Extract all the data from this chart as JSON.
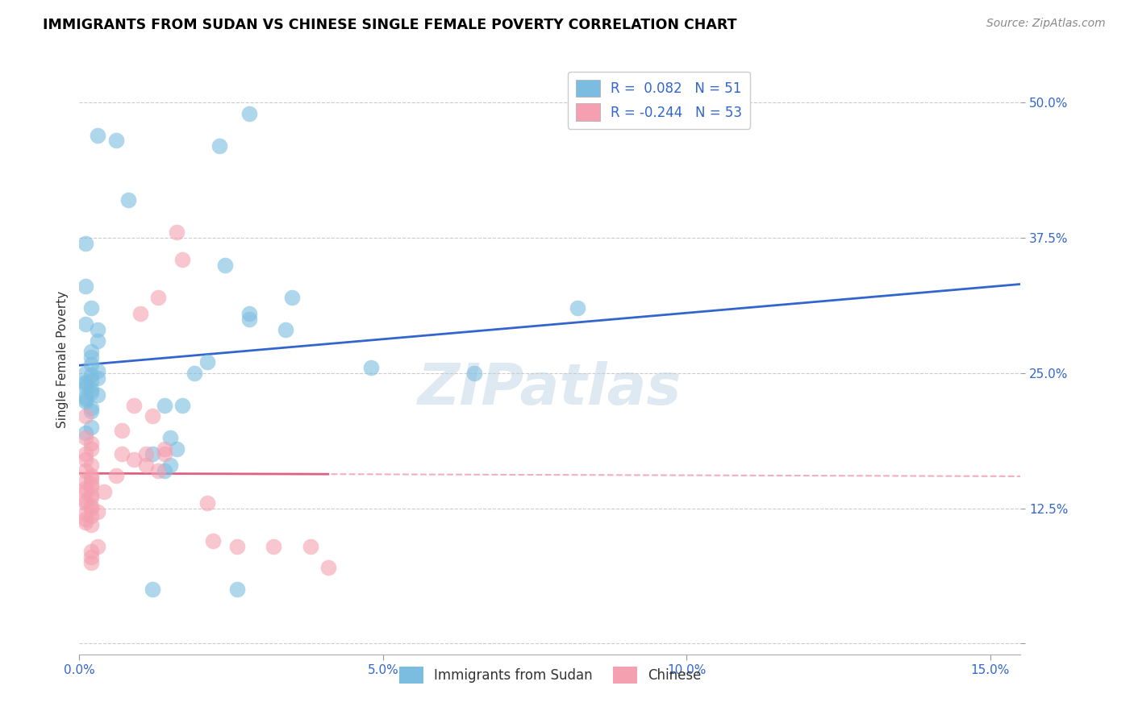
{
  "title": "IMMIGRANTS FROM SUDAN VS CHINESE SINGLE FEMALE POVERTY CORRELATION CHART",
  "source": "Source: ZipAtlas.com",
  "ylabel": "Single Female Poverty",
  "yticks": [
    0.0,
    0.125,
    0.25,
    0.375,
    0.5
  ],
  "ytick_labels": [
    "",
    "12.5%",
    "25.0%",
    "37.5%",
    "50.0%"
  ],
  "xticks": [
    0.0,
    0.05,
    0.1,
    0.15
  ],
  "xtick_labels": [
    "0.0%",
    "5.0%",
    "10.0%",
    "15.0%"
  ],
  "xlim": [
    0.0,
    0.155
  ],
  "ylim": [
    -0.01,
    0.535
  ],
  "legend_label1": "Immigrants from Sudan",
  "legend_label2": "Chinese",
  "color_blue": "#7bbde0",
  "color_pink": "#f4a0b0",
  "line_blue": "#3366cc",
  "line_pink": "#e06080",
  "watermark": "ZIPatlas",
  "sudan_x": [
    0.001,
    0.008,
    0.003,
    0.006,
    0.001,
    0.001,
    0.002,
    0.001,
    0.003,
    0.003,
    0.002,
    0.002,
    0.002,
    0.003,
    0.002,
    0.003,
    0.002,
    0.001,
    0.001,
    0.001,
    0.002,
    0.002,
    0.003,
    0.001,
    0.001,
    0.001,
    0.002,
    0.002,
    0.002,
    0.001,
    0.014,
    0.015,
    0.012,
    0.028,
    0.023,
    0.024,
    0.035,
    0.028,
    0.021,
    0.019,
    0.017,
    0.016,
    0.015,
    0.014,
    0.012,
    0.026,
    0.028,
    0.034,
    0.048,
    0.065,
    0.082
  ],
  "sudan_y": [
    0.25,
    0.41,
    0.47,
    0.465,
    0.37,
    0.33,
    0.31,
    0.295,
    0.29,
    0.28,
    0.27,
    0.265,
    0.258,
    0.252,
    0.248,
    0.245,
    0.243,
    0.242,
    0.24,
    0.237,
    0.235,
    0.232,
    0.23,
    0.228,
    0.226,
    0.224,
    0.218,
    0.215,
    0.2,
    0.195,
    0.22,
    0.19,
    0.175,
    0.49,
    0.46,
    0.35,
    0.32,
    0.305,
    0.26,
    0.25,
    0.22,
    0.18,
    0.165,
    0.16,
    0.05,
    0.05,
    0.3,
    0.29,
    0.255,
    0.25,
    0.31
  ],
  "chinese_x": [
    0.001,
    0.001,
    0.002,
    0.002,
    0.001,
    0.001,
    0.002,
    0.001,
    0.002,
    0.002,
    0.001,
    0.002,
    0.002,
    0.001,
    0.001,
    0.002,
    0.002,
    0.001,
    0.001,
    0.002,
    0.002,
    0.003,
    0.001,
    0.002,
    0.001,
    0.001,
    0.002,
    0.012,
    0.011,
    0.014,
    0.007,
    0.009,
    0.011,
    0.013,
    0.016,
    0.017,
    0.013,
    0.01,
    0.009,
    0.007,
    0.014,
    0.006,
    0.004,
    0.003,
    0.002,
    0.002,
    0.002,
    0.022,
    0.021,
    0.026,
    0.032,
    0.038,
    0.041
  ],
  "chinese_y": [
    0.21,
    0.19,
    0.185,
    0.18,
    0.175,
    0.17,
    0.165,
    0.16,
    0.155,
    0.152,
    0.15,
    0.148,
    0.145,
    0.143,
    0.14,
    0.137,
    0.135,
    0.132,
    0.13,
    0.127,
    0.125,
    0.122,
    0.12,
    0.118,
    0.115,
    0.112,
    0.11,
    0.21,
    0.175,
    0.175,
    0.175,
    0.17,
    0.165,
    0.16,
    0.38,
    0.355,
    0.32,
    0.305,
    0.22,
    0.197,
    0.18,
    0.155,
    0.14,
    0.09,
    0.085,
    0.08,
    0.075,
    0.095,
    0.13,
    0.09,
    0.09,
    0.09,
    0.07
  ],
  "sudan_R": 0.082,
  "sudan_N": 51,
  "chinese_R": -0.244,
  "chinese_N": 53
}
